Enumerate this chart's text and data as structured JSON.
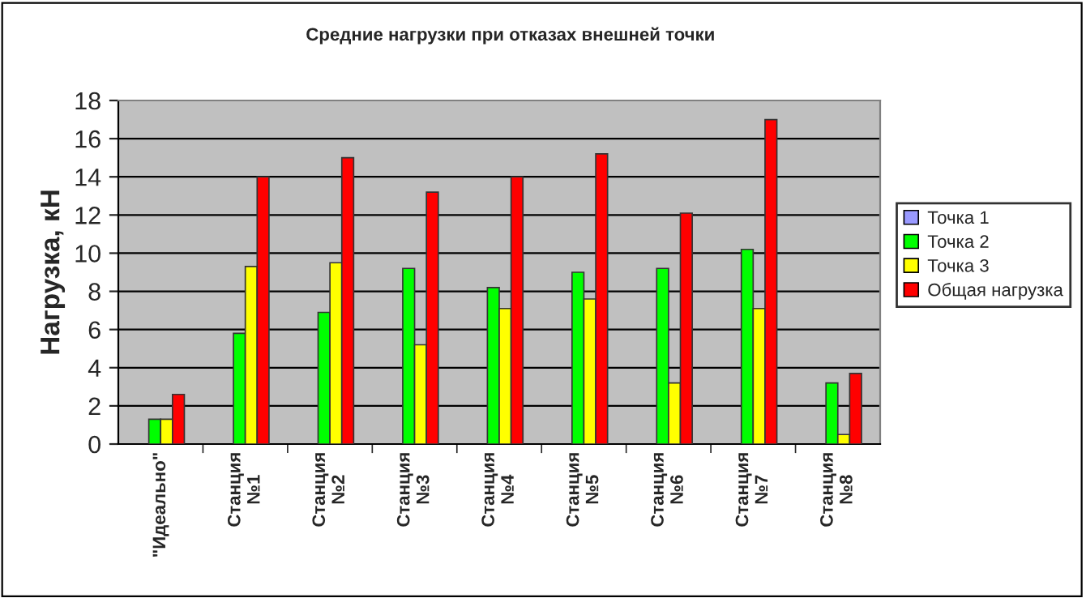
{
  "chart_data": {
    "type": "bar",
    "title": "Средние нагрузки при отказах внешней точки",
    "ylabel": "Нагрузка, кН",
    "categories": [
      "\"Идеально\"",
      "Станция\n№1",
      "Станция\n№2",
      "Станция\n№3",
      "Станция\n№4",
      "Станция\n№5",
      "Станция\n№6",
      "Станция\n№7",
      "Станция\n№8"
    ],
    "series": [
      {
        "name": "Точка 1",
        "color": "#9999ff",
        "values": [
          null,
          null,
          null,
          null,
          null,
          null,
          null,
          null,
          null
        ]
      },
      {
        "name": "Точка 2",
        "color": "#00ff00",
        "values": [
          1.3,
          5.8,
          6.9,
          9.2,
          8.2,
          9.0,
          9.2,
          10.2,
          3.2
        ]
      },
      {
        "name": "Точка 3",
        "color": "#ffff00",
        "values": [
          1.3,
          9.3,
          9.5,
          5.2,
          7.1,
          7.6,
          3.2,
          7.1,
          0.5
        ]
      },
      {
        "name": "Общая нагрузка",
        "color": "#ff0000",
        "values": [
          2.6,
          14.0,
          15.0,
          13.2,
          14.0,
          15.2,
          12.1,
          17.0,
          3.7
        ]
      }
    ],
    "ylim": [
      0,
      18
    ],
    "yticks": [
      0,
      2,
      4,
      6,
      8,
      10,
      12,
      14,
      16,
      18
    ],
    "grid": "y",
    "legend": "right"
  }
}
